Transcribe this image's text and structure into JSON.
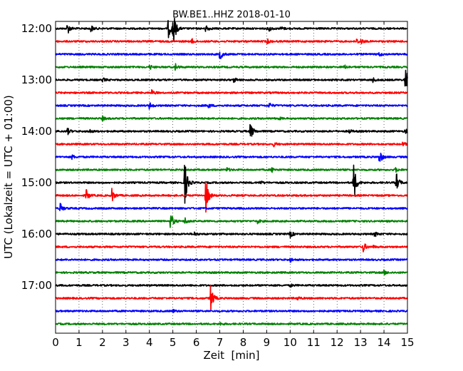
{
  "chart_data": {
    "type": "line",
    "title": "BW.BE1..HHZ 2018-01-10",
    "xlabel": "Zeit  [min]",
    "ylabel": "UTC (Lokalzeit = UTC + 01:00)",
    "xlim": [
      0,
      15
    ],
    "x_ticks": [
      "0",
      "1",
      "2",
      "3",
      "4",
      "5",
      "6",
      "7",
      "8",
      "9",
      "10",
      "11",
      "12",
      "13",
      "14",
      "15"
    ],
    "y_ticks": [
      "12:00",
      "13:00",
      "14:00",
      "15:00",
      "16:00",
      "17:00"
    ],
    "grid": "vertical dotted",
    "line_interval_min": 15,
    "colors": [
      "#000000",
      "#ff0000",
      "#0000ff",
      "#008000"
    ],
    "traces": [
      {
        "start": "12:00",
        "events": [
          {
            "t": 0.5,
            "a": 9
          },
          {
            "t": 1.5,
            "a": 5
          },
          {
            "t": 4.8,
            "a": 14
          },
          {
            "t": 5.0,
            "a": 30
          },
          {
            "t": 6.4,
            "a": 6
          },
          {
            "t": 9.1,
            "a": 4
          },
          {
            "t": 9.6,
            "a": 3
          }
        ]
      },
      {
        "start": "12:15",
        "events": [
          {
            "t": 5.8,
            "a": 4
          },
          {
            "t": 9.0,
            "a": 4
          },
          {
            "t": 12.8,
            "a": 5
          },
          {
            "t": 13.0,
            "a": 4
          }
        ]
      },
      {
        "start": "12:30",
        "events": [
          {
            "t": 7.0,
            "a": 9
          },
          {
            "t": 13.8,
            "a": 3
          }
        ]
      },
      {
        "start": "12:45",
        "events": [
          {
            "t": 4.0,
            "a": 4
          },
          {
            "t": 5.1,
            "a": 5
          },
          {
            "t": 12.3,
            "a": 3
          }
        ]
      },
      {
        "start": "13:00",
        "events": [
          {
            "t": 2.0,
            "a": 3
          },
          {
            "t": 7.6,
            "a": 4
          },
          {
            "t": 13.5,
            "a": 4
          },
          {
            "t": 14.9,
            "a": 22
          }
        ]
      },
      {
        "start": "13:15",
        "events": [
          {
            "t": 4.1,
            "a": 4
          }
        ]
      },
      {
        "start": "13:30",
        "events": [
          {
            "t": 4.0,
            "a": 5
          },
          {
            "t": 6.5,
            "a": 4
          },
          {
            "t": 9.1,
            "a": 4
          }
        ]
      },
      {
        "start": "13:45",
        "events": [
          {
            "t": 2.0,
            "a": 3
          },
          {
            "t": 9.5,
            "a": 2
          }
        ]
      },
      {
        "start": "14:00",
        "events": [
          {
            "t": 0.5,
            "a": 5
          },
          {
            "t": 1.4,
            "a": 4
          },
          {
            "t": 8.3,
            "a": 14
          },
          {
            "t": 12.5,
            "a": 3
          },
          {
            "t": 14.9,
            "a": 4
          }
        ]
      },
      {
        "start": "14:15",
        "events": [
          {
            "t": 9.3,
            "a": 3
          },
          {
            "t": 14.8,
            "a": 3
          }
        ]
      },
      {
        "start": "14:30",
        "events": [
          {
            "t": 0.7,
            "a": 3
          },
          {
            "t": 13.8,
            "a": 12
          }
        ]
      },
      {
        "start": "14:45",
        "events": [
          {
            "t": 7.3,
            "a": 3
          },
          {
            "t": 9.2,
            "a": 4
          },
          {
            "t": 14.5,
            "a": 3
          }
        ]
      },
      {
        "start": "15:00",
        "events": [
          {
            "t": 5.5,
            "a": 36
          },
          {
            "t": 8.7,
            "a": 3
          },
          {
            "t": 12.7,
            "a": 30
          },
          {
            "t": 14.5,
            "a": 18
          }
        ]
      },
      {
        "start": "15:15",
        "events": [
          {
            "t": 1.3,
            "a": 9
          },
          {
            "t": 2.4,
            "a": 10
          },
          {
            "t": 6.4,
            "a": 28
          }
        ]
      },
      {
        "start": "15:30",
        "events": [
          {
            "t": 0.2,
            "a": 8
          }
        ]
      },
      {
        "start": "15:45",
        "events": [
          {
            "t": 4.9,
            "a": 14
          },
          {
            "t": 5.5,
            "a": 6
          },
          {
            "t": 8.6,
            "a": 3
          }
        ]
      },
      {
        "start": "16:00",
        "events": [
          {
            "t": 5.9,
            "a": 3
          },
          {
            "t": 10.0,
            "a": 5
          },
          {
            "t": 13.6,
            "a": 4
          }
        ]
      },
      {
        "start": "16:15",
        "events": [
          {
            "t": 13.1,
            "a": 8
          },
          {
            "t": 13.5,
            "a": 2
          }
        ]
      },
      {
        "start": "16:30",
        "events": [
          {
            "t": 10.0,
            "a": 3
          }
        ]
      },
      {
        "start": "16:45",
        "events": [
          {
            "t": 14.0,
            "a": 3
          }
        ]
      },
      {
        "start": "17:00",
        "events": [
          {
            "t": 10.0,
            "a": 2
          }
        ]
      },
      {
        "start": "17:15",
        "events": [
          {
            "t": 6.6,
            "a": 22
          },
          {
            "t": 10.3,
            "a": 3
          }
        ]
      },
      {
        "start": "17:30",
        "events": [
          {
            "t": 5.0,
            "a": 2
          }
        ]
      },
      {
        "start": "17:45",
        "events": [
          {
            "t": 7.0,
            "a": 2
          }
        ]
      }
    ]
  }
}
